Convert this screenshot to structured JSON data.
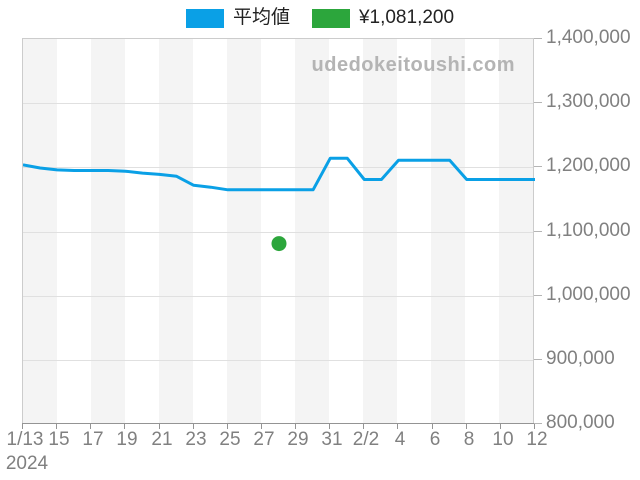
{
  "watermark": "udedokeitoushi.com",
  "legend": {
    "items": [
      {
        "label": "平均値",
        "color": "#0aa0e6"
      },
      {
        "label": "¥1,081,200",
        "color": "#2ca63c"
      }
    ]
  },
  "chart_data": {
    "type": "line",
    "title": "",
    "xlabel": "",
    "ylabel": "",
    "x_axis_year": "2024",
    "x": [
      "1/13",
      "1/14",
      "1/15",
      "1/16",
      "1/17",
      "1/18",
      "1/19",
      "1/20",
      "1/21",
      "1/22",
      "1/23",
      "1/24",
      "1/25",
      "1/26",
      "1/27",
      "1/28",
      "1/29",
      "1/30",
      "1/31",
      "2/1",
      "2/2",
      "2/3",
      "2/4",
      "2/5",
      "2/6",
      "2/7",
      "2/8",
      "2/9",
      "2/10",
      "2/11",
      "2/12"
    ],
    "x_tick_labels": [
      "1/13",
      "15",
      "17",
      "19",
      "21",
      "23",
      "25",
      "27",
      "29",
      "31",
      "2/2",
      "4",
      "6",
      "8",
      "10",
      "12"
    ],
    "ylim": [
      800000,
      1400000
    ],
    "y_tick_interval": 100000,
    "y_tick_labels": [
      "1,400,000",
      "1,300,000",
      "1,200,000",
      "1,100,000",
      "1,000,000",
      "900,000",
      "800,000"
    ],
    "grid": "horizontal",
    "background_stripes": true,
    "legend_position": "top-center",
    "series": [
      {
        "name": "平均値",
        "type": "line",
        "color": "#0aa0e6",
        "values": [
          1204000,
          1199000,
          1196000,
          1195000,
          1195000,
          1195000,
          1194000,
          1191000,
          1189000,
          1186000,
          1172000,
          1169000,
          1165000,
          1165000,
          1165000,
          1165000,
          1165000,
          1165000,
          1214000,
          1214000,
          1181000,
          1181000,
          1211000,
          1211000,
          1211000,
          1211000,
          1181000,
          1181000,
          1181000,
          1181000,
          1181000
        ]
      }
    ],
    "scatter_points": [
      {
        "name": "¥1,081,200",
        "color": "#2ca63c",
        "x": "1/28",
        "value": 1081200
      }
    ]
  }
}
